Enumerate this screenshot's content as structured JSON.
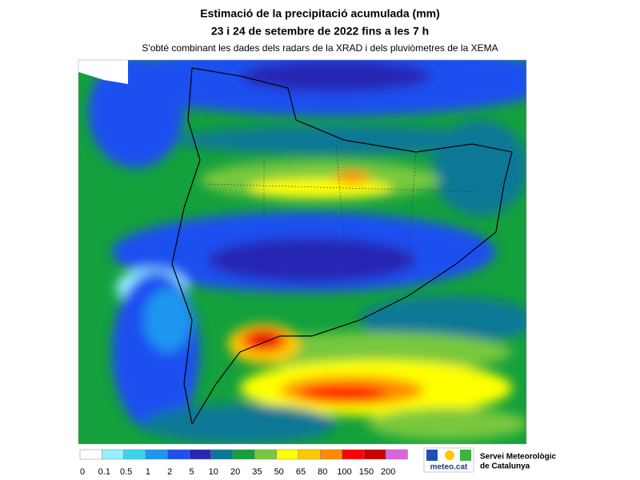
{
  "header": {
    "title": "Estimació de la precipitació acumulada (mm)",
    "subtitle": "23 i 24 de setembre de 2022 fins a les 7 h",
    "note": "S'obté combinant les dades dels radars de la XRAD i dels pluviòmetres de la XEMA"
  },
  "legend": {
    "labels": [
      "0",
      "0.1",
      "0.5",
      "1",
      "2",
      "5",
      "10",
      "20",
      "35",
      "50",
      "65",
      "80",
      "100",
      "150",
      "200"
    ],
    "colors": [
      "#ffffff",
      "#96f0ff",
      "#3cd2f0",
      "#1e96f0",
      "#1e50f0",
      "#2828b4",
      "#0a7896",
      "#14a03c",
      "#78c83c",
      "#ffff00",
      "#ffc800",
      "#ff8c00",
      "#ff0000",
      "#c80000",
      "#dc64dc"
    ]
  },
  "logo": {
    "brand": "meteo.cat",
    "org_line1": "Servei Meteorològic",
    "org_line2": "de Catalunya"
  }
}
